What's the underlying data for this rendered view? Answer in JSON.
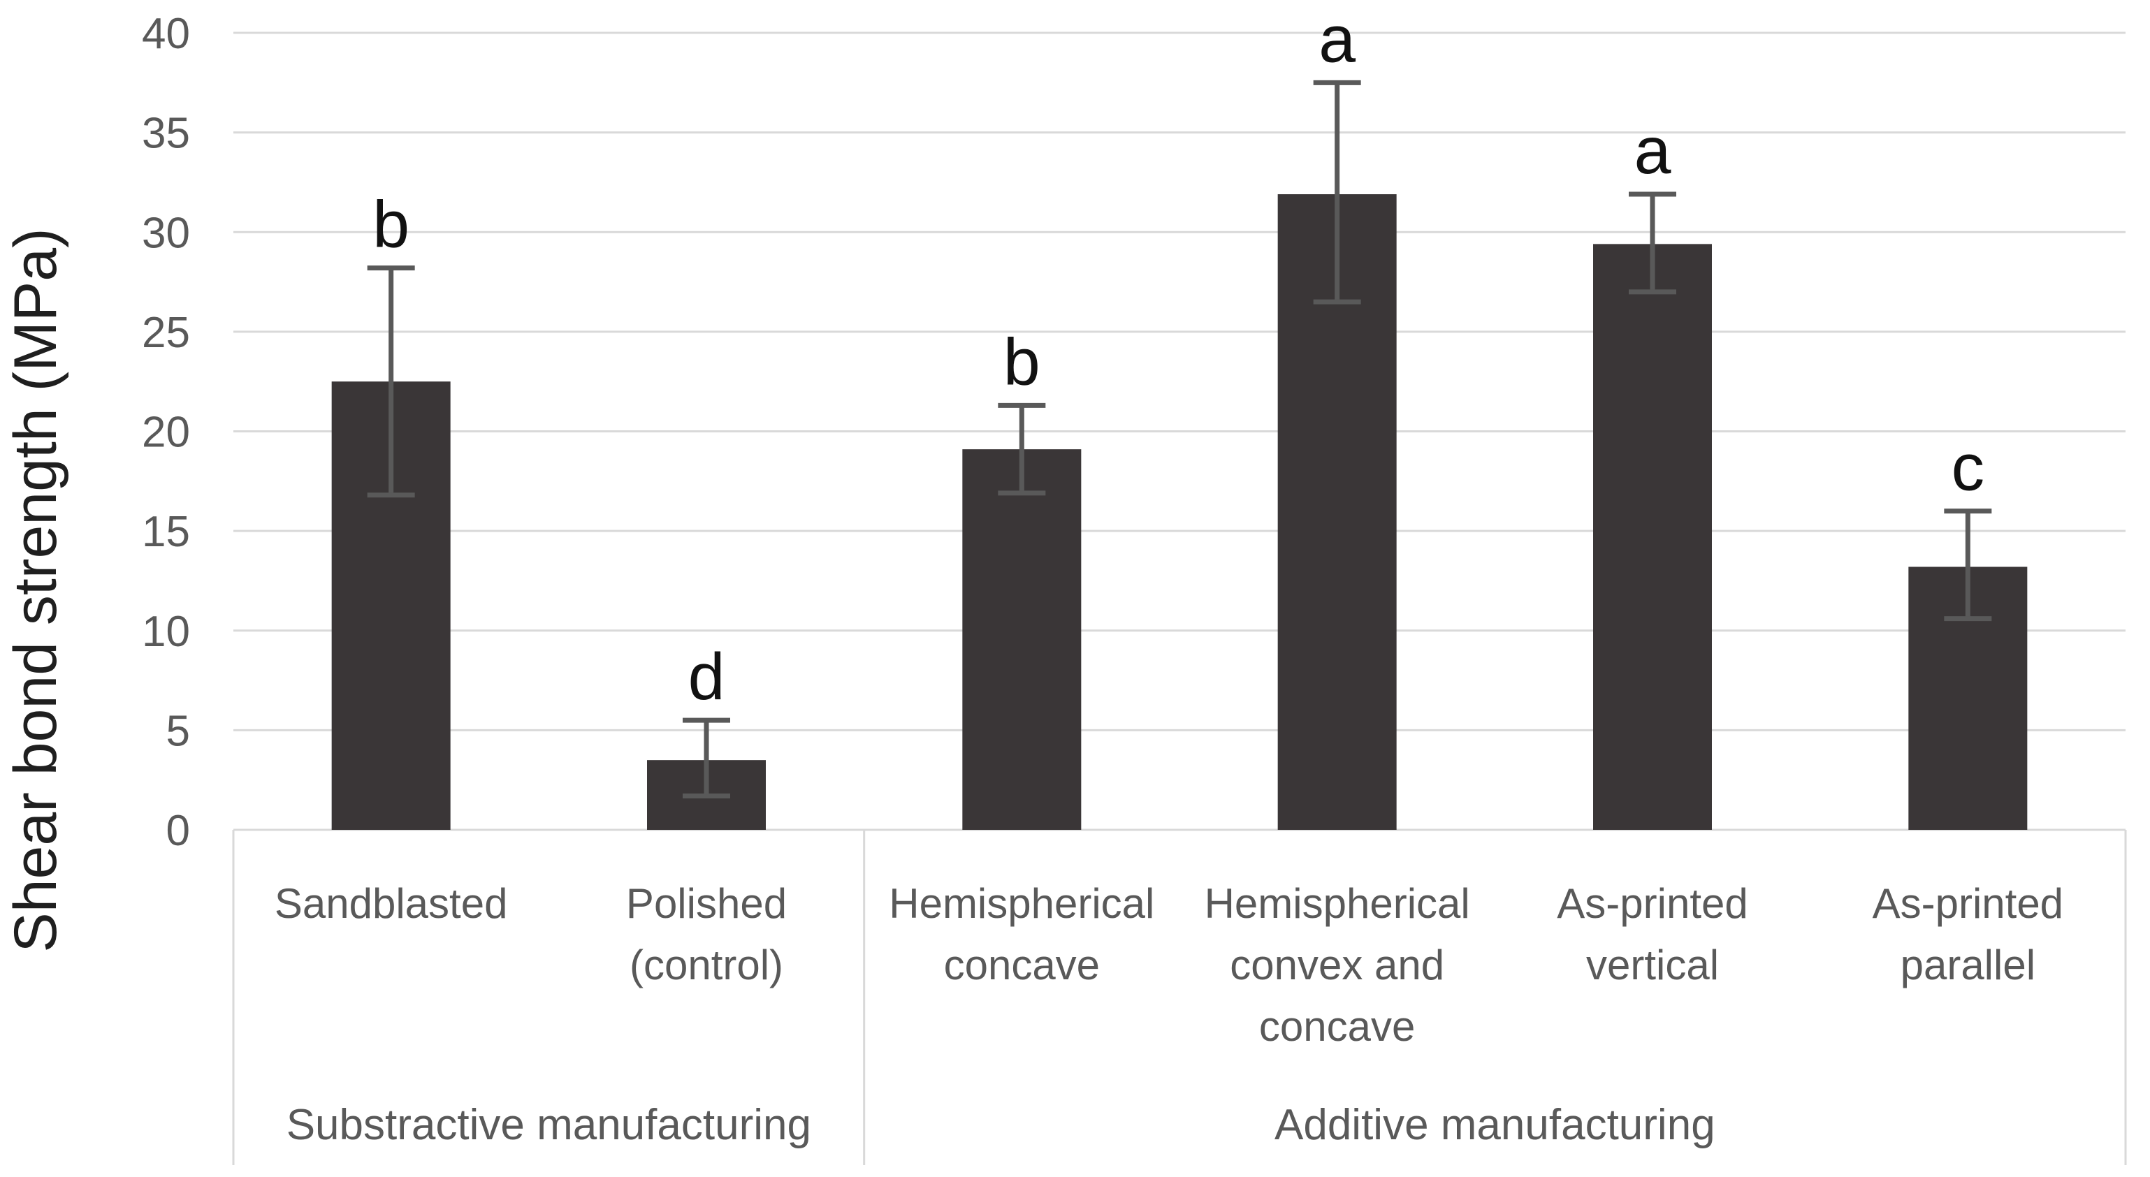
{
  "chart_data": {
    "type": "bar",
    "title": "",
    "xlabel": "",
    "ylabel": "Shear bond strength (MPa)",
    "ylim": [
      0,
      40
    ],
    "yticks": [
      0,
      5,
      10,
      15,
      20,
      25,
      30,
      35,
      40
    ],
    "grid": "horizontal",
    "legend": "none",
    "bar_color": "#3a3637",
    "error_bar_color": "#595959",
    "gridline_color": "#d9d9d9",
    "axis_box_color": "#d9d9d9",
    "axis_text_color": "#595959",
    "letter_color": "#111111",
    "categories": [
      {
        "label": "Sandblasted",
        "lines": [
          "Sandblasted"
        ],
        "value": 22.5,
        "error_low": 16.8,
        "error_high": 28.2,
        "letter": "b",
        "group": "Substractive manufacturing"
      },
      {
        "label": "Polished (control)",
        "lines": [
          "Polished",
          "(control)"
        ],
        "value": 3.5,
        "error_low": 1.7,
        "error_high": 5.5,
        "letter": "d",
        "group": "Substractive manufacturing"
      },
      {
        "label": "Hemispherical concave",
        "lines": [
          "Hemispherical",
          "concave"
        ],
        "value": 19.1,
        "error_low": 16.9,
        "error_high": 21.3,
        "letter": "b",
        "group": "Additive manufacturing"
      },
      {
        "label": "Hemispherical convex and concave",
        "lines": [
          "Hemispherical",
          "convex and",
          "concave"
        ],
        "value": 31.9,
        "error_low": 26.5,
        "error_high": 37.5,
        "letter": "a",
        "group": "Additive manufacturing"
      },
      {
        "label": "As-printed vertical",
        "lines": [
          "As-printed",
          "vertical"
        ],
        "value": 29.4,
        "error_low": 27.0,
        "error_high": 31.9,
        "letter": "a",
        "group": "Additive manufacturing"
      },
      {
        "label": "As-printed parallel",
        "lines": [
          "As-printed",
          "parallel"
        ],
        "value": 13.2,
        "error_low": 10.6,
        "error_high": 16.0,
        "letter": "c",
        "group": "Additive manufacturing"
      }
    ],
    "groups": [
      {
        "label": "Substractive manufacturing",
        "span": [
          0,
          1
        ]
      },
      {
        "label": "Additive manufacturing",
        "span": [
          2,
          5
        ]
      }
    ]
  }
}
